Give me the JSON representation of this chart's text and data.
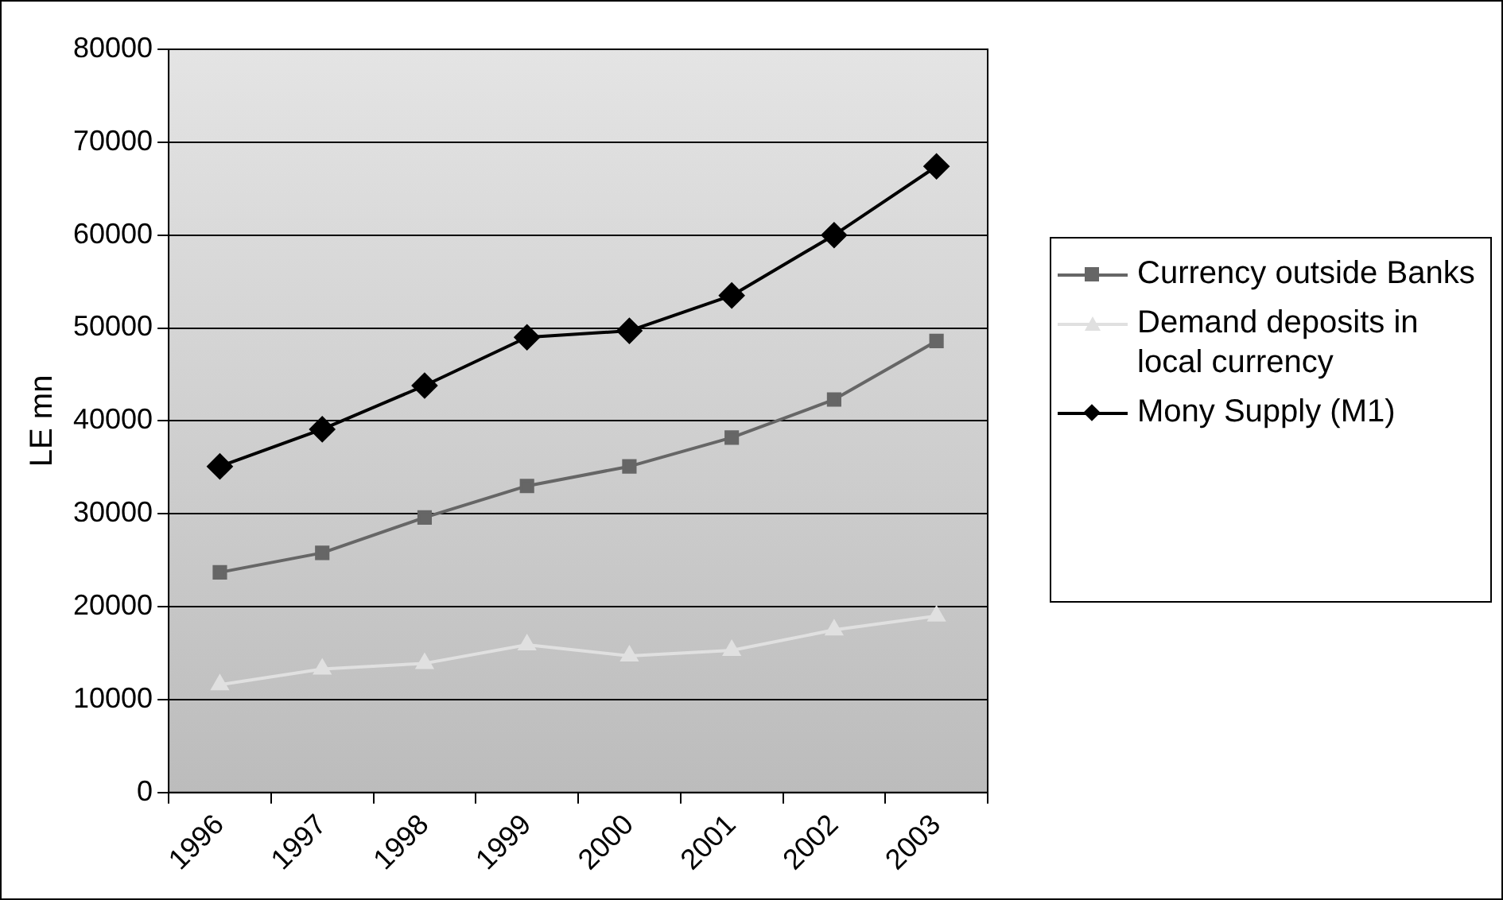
{
  "chart_data": {
    "type": "line",
    "ylabel": "LE mn",
    "categories": [
      "1996",
      "1997",
      "1998",
      "1999",
      "2000",
      "2001",
      "2002",
      "2003"
    ],
    "series": [
      {
        "name": "Currency outside Banks",
        "color": "#666666",
        "marker": "square",
        "values": [
          23700,
          25800,
          29600,
          33000,
          35100,
          38200,
          42300,
          48600
        ]
      },
      {
        "name": "Demand deposits in local currency",
        "color": "#e0e0e0",
        "marker": "triangle",
        "values": [
          11600,
          13300,
          13900,
          15900,
          14700,
          15300,
          17500,
          19000
        ]
      },
      {
        "name": "Mony Supply (M1)",
        "color": "#000000",
        "marker": "diamond",
        "values": [
          35100,
          39100,
          43800,
          49000,
          49700,
          53500,
          60000,
          67400
        ]
      }
    ],
    "ylim": [
      0,
      80000
    ],
    "yticks": [
      0,
      10000,
      20000,
      30000,
      40000,
      50000,
      60000,
      70000,
      80000
    ],
    "grid": "y",
    "legend": "right",
    "line_style": "solid"
  }
}
